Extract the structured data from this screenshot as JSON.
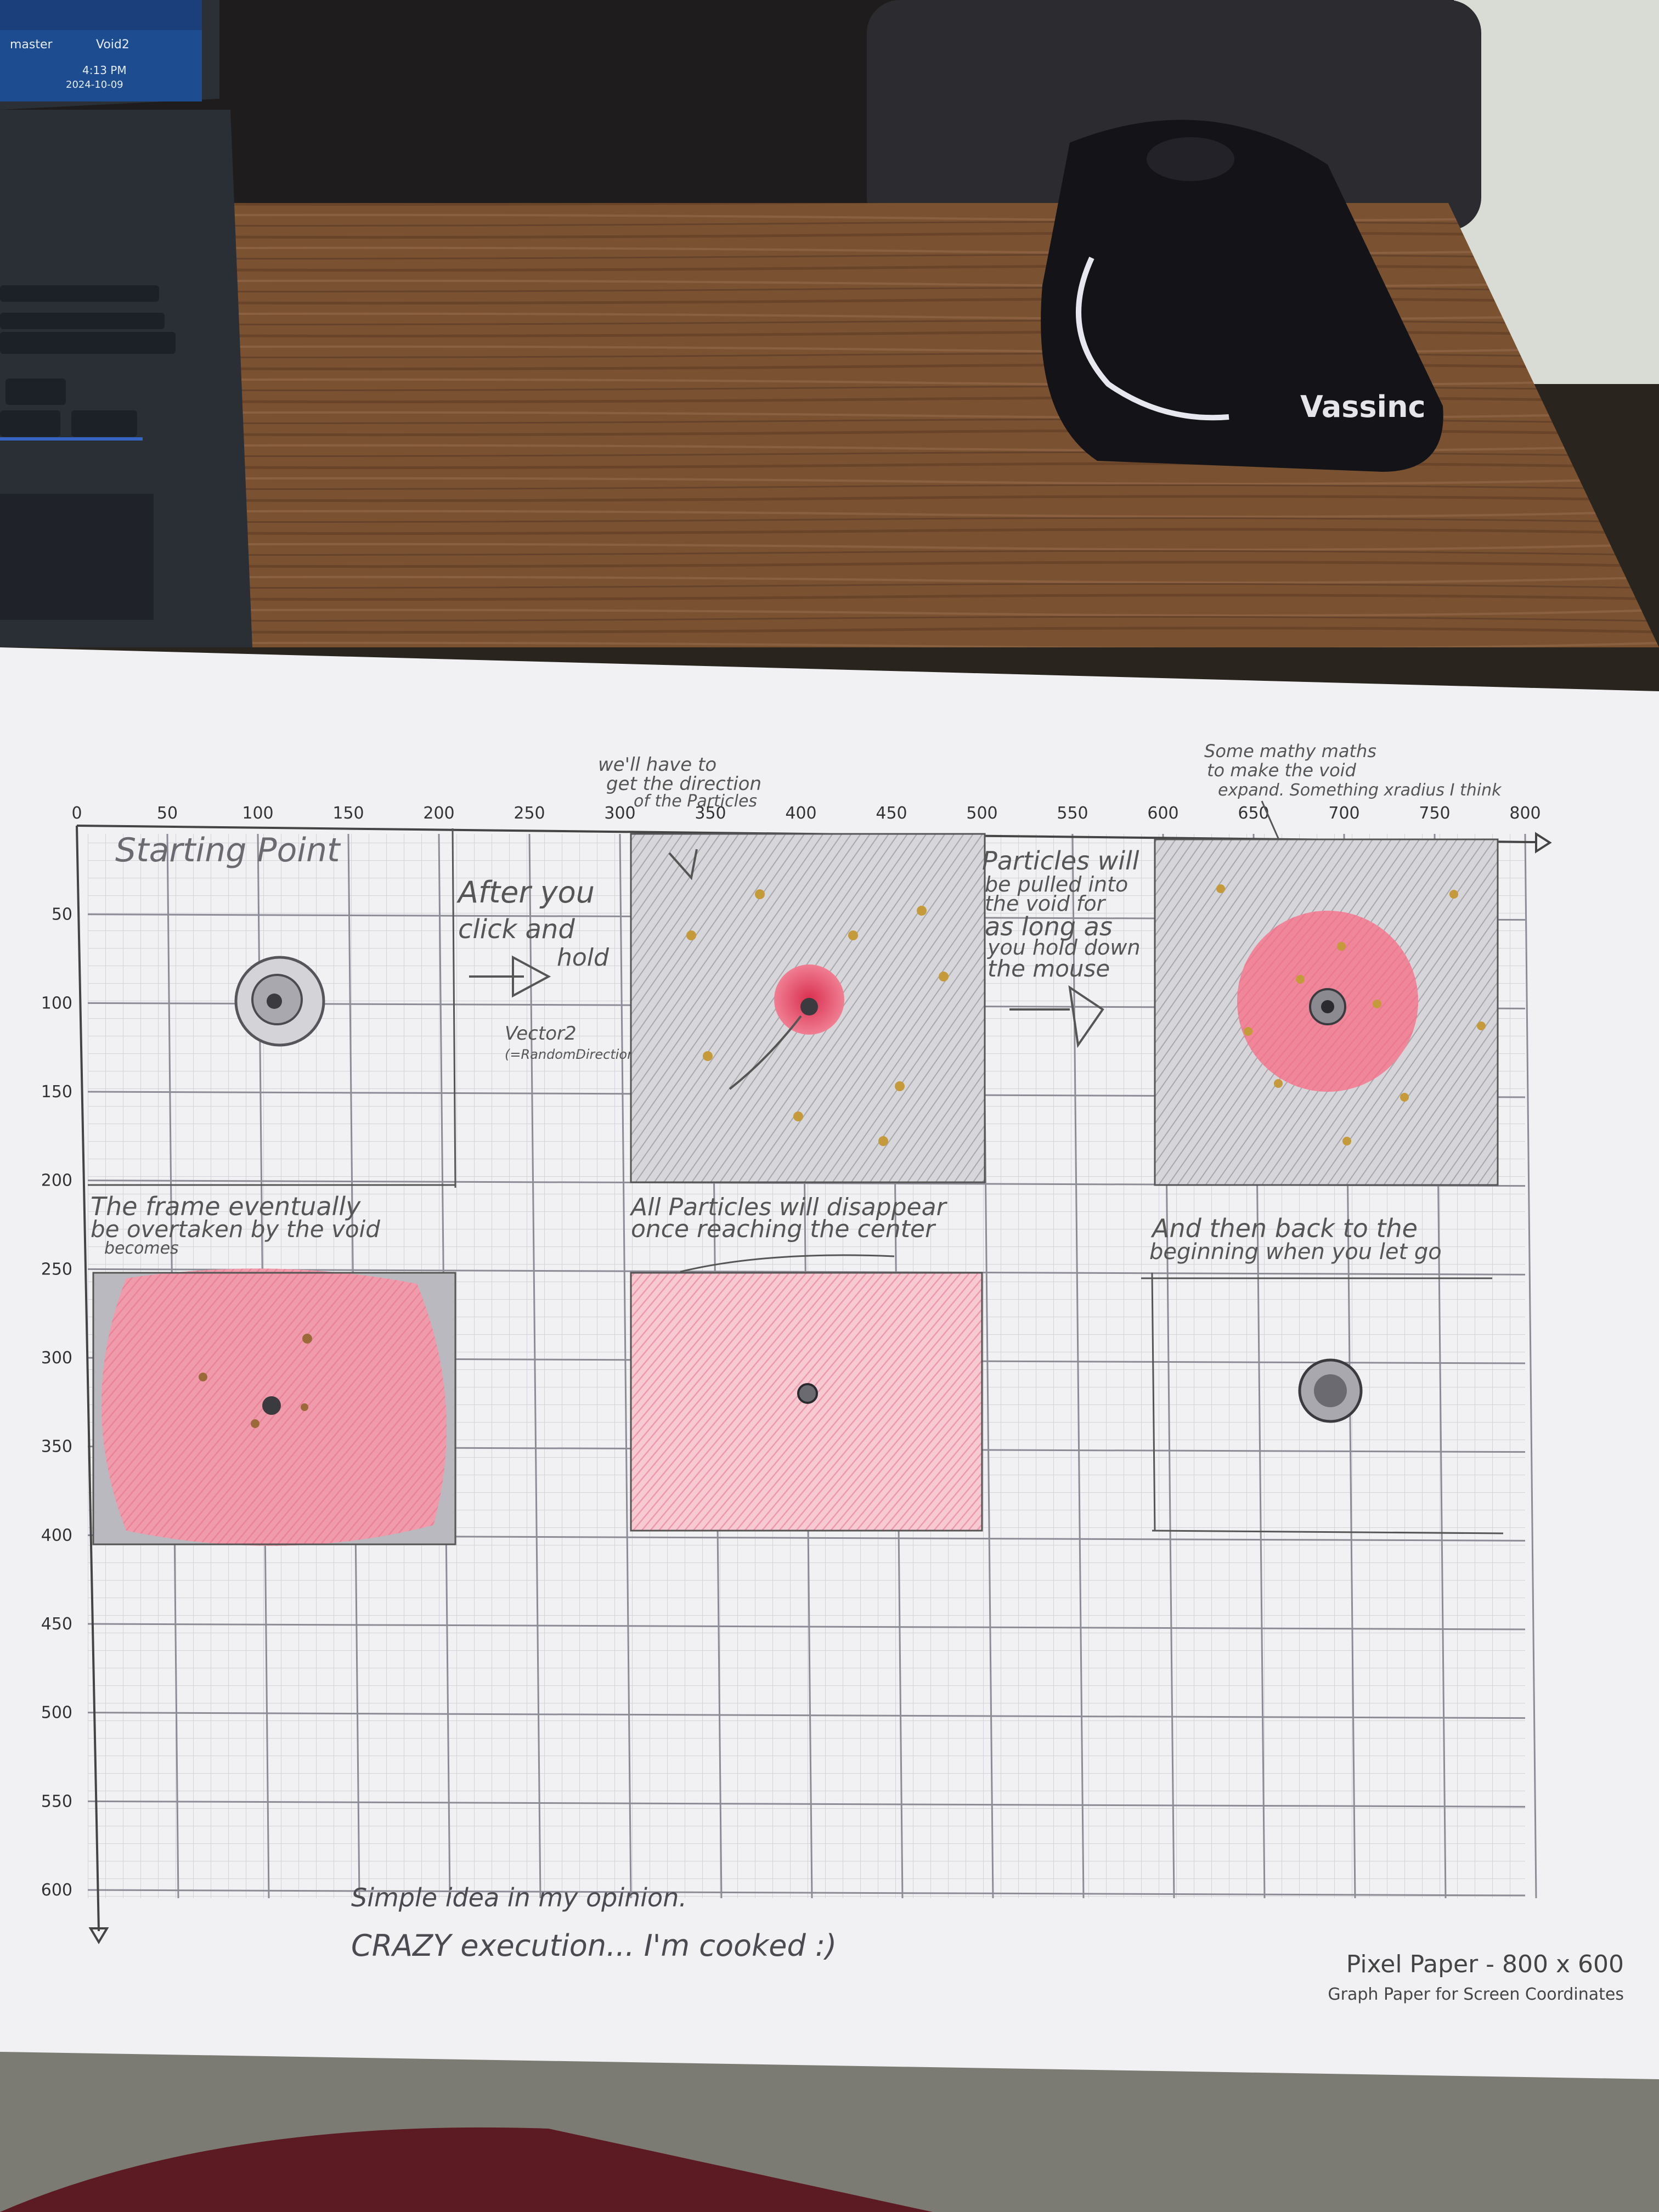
{
  "laptop": {
    "branch_label": "master",
    "project_label": "Void2",
    "time": "4:13 PM",
    "date": "2024-10-09"
  },
  "mouse": {
    "brand": "Vassinc"
  },
  "paper": {
    "x_ticks": [
      "0",
      "50",
      "100",
      "150",
      "200",
      "250",
      "300",
      "350",
      "400",
      "450",
      "500",
      "550",
      "600",
      "650",
      "700",
      "750",
      "800"
    ],
    "y_ticks": [
      "50",
      "100",
      "150",
      "200",
      "250",
      "300",
      "350",
      "400",
      "450",
      "500",
      "550",
      "600"
    ],
    "footer_title": "Pixel Paper - 800 x 600",
    "footer_subtitle": "Graph Paper for Screen Coordinates"
  },
  "notes": {
    "starting_point": "Starting Point",
    "after_click_1": "After you",
    "after_click_2": "click and",
    "after_click_3": "hold",
    "vector_1": "Vector2",
    "vector_2": "(=RandomDirection",
    "direction_1": "we'll have to",
    "direction_2": "get the direction",
    "direction_3": "of the Particles",
    "pulled_1": "Particles will",
    "pulled_2": "be pulled into",
    "pulled_3": "the void for",
    "pulled_4": "as long as",
    "pulled_5": "you hold down",
    "pulled_6": "the mouse",
    "maths_1": "Some mathy maths",
    "maths_2": "to make the void",
    "maths_3": "expand. Something xradius I think",
    "frame_1": "The frame eventually",
    "frame_2": "be overtaken by the void",
    "frame_3": "becomes",
    "disappear_1": "All Particles will disappear",
    "disappear_2": "once reaching the center",
    "back_1": "And then back to the",
    "back_2": "beginning when you let go",
    "bottom_1": "Simple idea in my opinion.",
    "bottom_2": "CRAZY execution... I'm cooked :)"
  },
  "colors": {
    "desk": "#7a5232",
    "paper": "#f1f1f3",
    "grid_major": "#8c8c96",
    "grid_minor": "#c9c9cf",
    "void_pink": "#ec8a9e",
    "void_red": "#e0445e",
    "particle": "#c49a3a",
    "pencil": "#4a4a50"
  }
}
